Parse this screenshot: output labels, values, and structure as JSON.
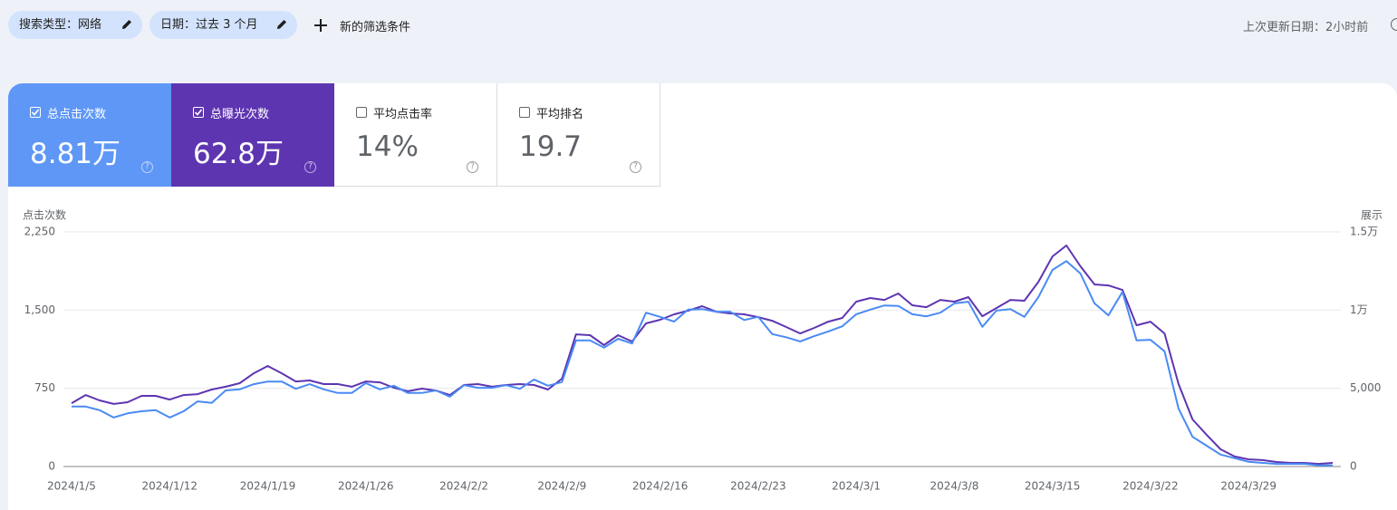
{
  "toolbar": {
    "filters": [
      "搜索类型：网络",
      "日期：过去 3 个月"
    ],
    "add_filter": "新的筛选条件",
    "last_update": "上次更新日期：2小时前"
  },
  "metrics": [
    {
      "value": "8.81万",
      "checked": true
    },
    {
      "value": "62.8万",
      "checked": true
    },
    {
      "label": "平均点击率",
      "value": "14%",
      "checked": false
    },
    {
      "label": "平均排名",
      "value": "19.7",
      "checked": false
    }
  ],
  "chart_data": {
    "type": "line",
    "y_label": "点击次数",
    "y2_label": "展示",
    "categories": [
      "2024/1/5",
      null,
      null,
      null,
      null,
      null,
      null,
      "2024/1/12",
      null,
      null,
      null,
      null,
      null,
      null,
      "2024/1/19",
      null,
      null,
      null,
      null,
      null,
      null,
      "2024/1/26",
      null,
      null,
      null,
      null,
      null,
      null,
      "2024/2/2",
      null,
      null,
      null,
      null,
      null,
      null,
      "2024/2/9",
      null,
      null,
      null,
      null,
      null,
      null,
      "2024/2/16",
      null,
      null,
      null,
      null,
      null,
      null,
      "2024/2/23",
      null,
      null,
      null,
      null,
      null,
      null,
      "2024/3/1",
      null,
      null,
      null,
      null,
      null,
      null,
      "2024/3/8",
      null,
      null,
      null,
      null,
      null,
      null,
      "2024/3/15",
      null,
      null,
      null,
      null,
      null,
      null,
      "2024/3/22",
      null,
      null,
      null,
      null,
      null,
      null,
      "2024/3/29",
      null,
      null,
      null,
      null,
      null,
      null
    ],
    "ylim": [
      0,
      2250
    ],
    "yticks": [
      0,
      750,
      {
        "value": 1500,
        "label": "1,500"
      },
      {
        "value": 2250,
        "label": "2,250"
      }
    ],
    "y2lim": [
      0,
      15000
    ],
    "y2ticks": [
      0,
      {
        "value": 5000,
        "label": "5,000"
      },
      {
        "value": 10000,
        "label": "1万"
      },
      {
        "value": 15000,
        "label": "1.5万"
      }
    ],
    "grid": true,
    "series": [
      {
        "name": "总点击次数",
        "color": "#4a8af4",
        "values": [
          575,
          575,
          540,
          470,
          510,
          530,
          540,
          470,
          530,
          625,
          610,
          730,
          740,
          790,
          815,
          815,
          745,
          790,
          740,
          705,
          705,
          800,
          740,
          775,
          705,
          705,
          730,
          670,
          780,
          755,
          755,
          780,
          745,
          835,
          775,
          810,
          1210,
          1210,
          1140,
          1225,
          1180,
          1475,
          1435,
          1390,
          1505,
          1510,
          1485,
          1485,
          1405,
          1435,
          1270,
          1240,
          1200,
          1250,
          1295,
          1345,
          1460,
          1505,
          1545,
          1540,
          1460,
          1440,
          1475,
          1565,
          1580,
          1340,
          1495,
          1510,
          1435,
          1625,
          1885,
          1970,
          1850,
          1565,
          1450,
          1675,
          1210,
          1215,
          1105,
          555,
          285,
          200,
          115,
          80,
          45,
          35,
          25,
          25,
          25,
          10,
          10
        ]
      },
      {
        "name": "总曝光次数",
        "color": "#5e35b1",
        "axis": "y2",
        "values": [
          4050,
          4570,
          4230,
          4000,
          4110,
          4520,
          4520,
          4280,
          4570,
          4630,
          4920,
          5100,
          5330,
          5960,
          6430,
          5960,
          5440,
          5500,
          5270,
          5270,
          5100,
          5440,
          5380,
          5040,
          4810,
          4980,
          4860,
          4570,
          5210,
          5270,
          5100,
          5210,
          5270,
          5210,
          4920,
          5620,
          8450,
          8400,
          7760,
          8400,
          7990,
          9150,
          9380,
          9730,
          9960,
          10250,
          9900,
          9790,
          9730,
          9550,
          9320,
          8920,
          8510,
          8860,
          9260,
          9500,
          10540,
          10770,
          10650,
          11060,
          10310,
          10190,
          10650,
          10540,
          10830,
          9610,
          10130,
          10650,
          10600,
          11810,
          13430,
          14130,
          12800,
          11640,
          11580,
          11290,
          9030,
          9260,
          8510,
          5270,
          3010,
          2030,
          1100,
          640,
          460,
          410,
          290,
          230,
          230,
          170,
          230
        ]
      }
    ]
  }
}
